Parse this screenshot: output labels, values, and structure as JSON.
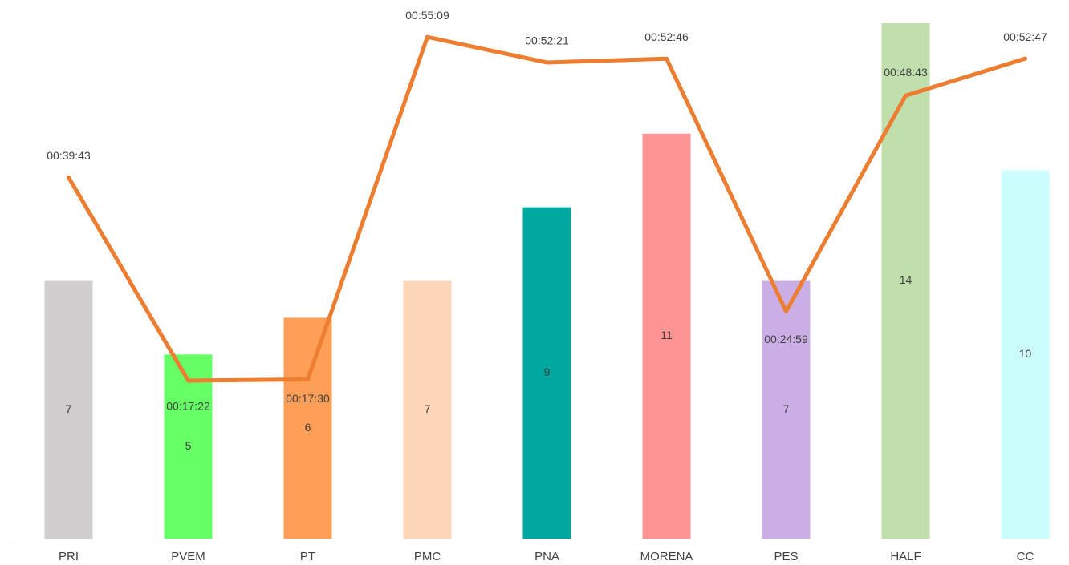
{
  "chart_data": {
    "type": "combo",
    "categories": [
      "PRI",
      "PVEM",
      "PT",
      "PMC",
      "PNA",
      "MORENA",
      "PES",
      "HALF",
      "CC"
    ],
    "series": [
      {
        "type": "bar",
        "values": [
          7,
          5,
          6,
          7,
          9,
          11,
          7,
          14,
          10
        ],
        "colors": [
          "#d0cece",
          "#66ff66",
          "#ff9e57",
          "#fdd5b8",
          "#00a8a0",
          "#ff9494",
          "#cbaee6",
          "#c0dfad",
          "#ccfdfd"
        ]
      },
      {
        "type": "line",
        "axis": "y2",
        "color": "#ed7d31",
        "values": [
          2383,
          1042,
          1050,
          3309,
          3141,
          3166,
          1499,
          2923,
          3167
        ],
        "value_labels": [
          "00:39:43",
          "00:17:22",
          "00:17:30",
          "00:55:09",
          "00:52:21",
          "00:52:46",
          "00:24:59",
          "00:48:43",
          "00:52:47"
        ]
      }
    ],
    "ylim": [
      0,
      14
    ],
    "y2lim": [
      0,
      3400
    ]
  }
}
